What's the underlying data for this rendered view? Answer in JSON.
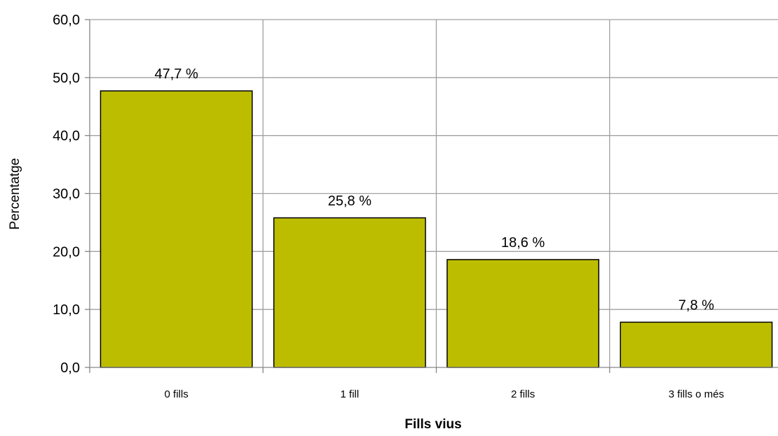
{
  "chart_data": {
    "type": "bar",
    "categories": [
      "0 fills",
      "1 fill",
      "2 fills",
      "3 fills o més"
    ],
    "values": [
      47.7,
      25.8,
      18.6,
      7.8
    ],
    "data_labels": [
      "47,7 %",
      "25,8 %",
      "18,6 %",
      "7,8 %"
    ],
    "xlabel": "Fills vius",
    "ylabel": "Percentatge",
    "ylim": [
      0,
      60
    ],
    "yticks": [
      0,
      10,
      20,
      30,
      40,
      50,
      60
    ],
    "ytick_labels": [
      "0,0",
      "10,0",
      "20,0",
      "30,0",
      "40,0",
      "50,0",
      "60,0"
    ],
    "grid": true,
    "bar_color": "#BDBD00",
    "grid_color": "#A0A0A0",
    "axis_color": "#868686"
  }
}
